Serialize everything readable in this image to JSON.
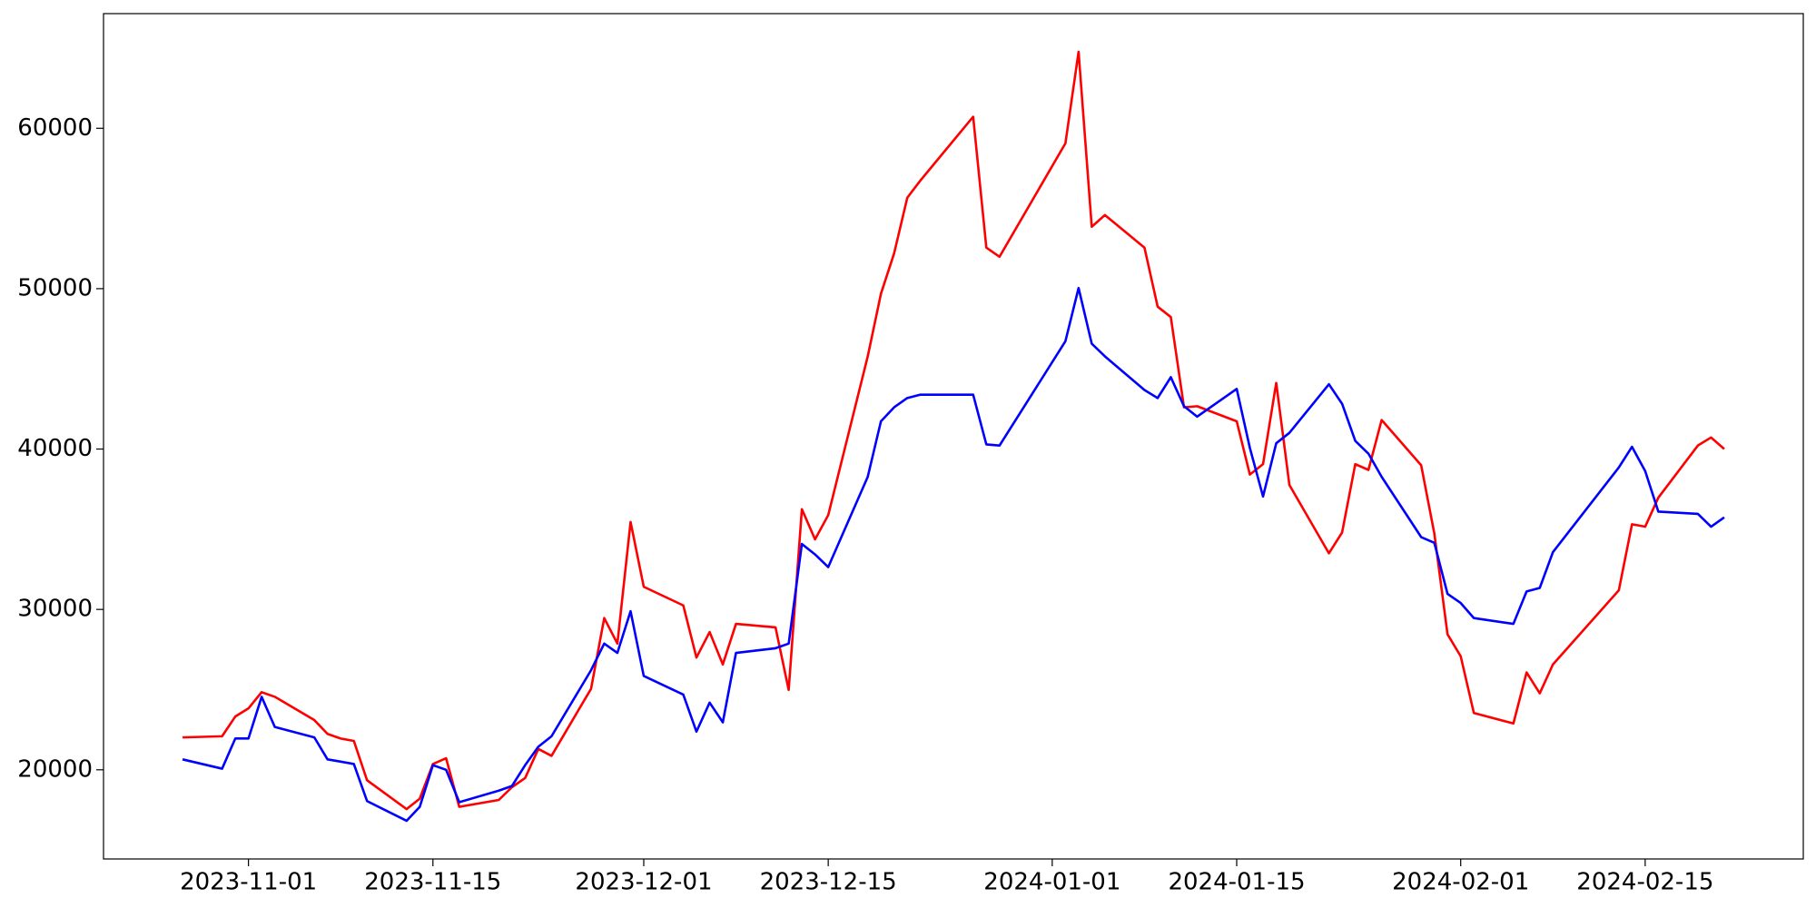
{
  "chart_data": {
    "type": "line",
    "x": [
      "2023-10-27",
      "2023-10-30",
      "2023-10-31",
      "2023-11-01",
      "2023-11-02",
      "2023-11-03",
      "2023-11-06",
      "2023-11-07",
      "2023-11-08",
      "2023-11-09",
      "2023-11-10",
      "2023-11-13",
      "2023-11-14",
      "2023-11-15",
      "2023-11-16",
      "2023-11-17",
      "2023-11-20",
      "2023-11-21",
      "2023-11-22",
      "2023-11-23",
      "2023-11-24",
      "2023-11-27",
      "2023-11-28",
      "2023-11-29",
      "2023-11-30",
      "2023-12-01",
      "2023-12-04",
      "2023-12-05",
      "2023-12-06",
      "2023-12-07",
      "2023-12-08",
      "2023-12-11",
      "2023-12-12",
      "2023-12-13",
      "2023-12-14",
      "2023-12-15",
      "2023-12-18",
      "2023-12-19",
      "2023-12-20",
      "2023-12-21",
      "2023-12-22",
      "2023-12-26",
      "2023-12-27",
      "2023-12-28",
      "2024-01-02",
      "2024-01-03",
      "2024-01-04",
      "2024-01-05",
      "2024-01-08",
      "2024-01-09",
      "2024-01-10",
      "2024-01-11",
      "2024-01-12",
      "2024-01-15",
      "2024-01-16",
      "2024-01-17",
      "2024-01-18",
      "2024-01-19",
      "2024-01-22",
      "2024-01-23",
      "2024-01-24",
      "2024-01-25",
      "2024-01-26",
      "2024-01-29",
      "2024-01-30",
      "2024-01-31",
      "2024-02-01",
      "2024-02-02",
      "2024-02-05",
      "2024-02-06",
      "2024-02-07",
      "2024-02-08",
      "2024-02-13",
      "2024-02-14",
      "2024-02-15",
      "2024-02-16",
      "2024-02-19",
      "2024-02-20",
      "2024-02-21"
    ],
    "series": [
      {
        "color": "#ff0000",
        "values": [
          22020,
          22090,
          23320,
          23830,
          24840,
          24550,
          23100,
          22240,
          21950,
          21800,
          19350,
          17550,
          18200,
          20360,
          20720,
          17690,
          18120,
          18920,
          19490,
          21300,
          20870,
          25050,
          29460,
          27870,
          35450,
          31410,
          30250,
          27000,
          28590,
          26570,
          29100,
          28880,
          24980,
          36250,
          34370,
          35880,
          45780,
          49680,
          52200,
          55670,
          56750,
          60720,
          52560,
          51990,
          59060,
          64770,
          53860,
          54590,
          52560,
          48880,
          48230,
          42600,
          42670,
          41730,
          38410,
          39060,
          44120,
          37760,
          33500,
          34800,
          39060,
          38700,
          41810,
          38990,
          34730,
          28450,
          27080,
          23540,
          22890,
          26070,
          24770,
          26570,
          31190,
          35310,
          35160,
          36970,
          40220,
          40720,
          40000
        ]
      },
      {
        "color": "#0000ff",
        "values": [
          20650,
          20070,
          21950,
          21950,
          24550,
          22670,
          22020,
          20650,
          20510,
          20360,
          18050,
          16820,
          17690,
          20290,
          20000,
          17980,
          18700,
          18990,
          20290,
          21440,
          22090,
          26210,
          27870,
          27290,
          29890,
          25850,
          24690,
          22380,
          24190,
          22960,
          27290,
          27580,
          27870,
          34080,
          33430,
          32640,
          38270,
          41730,
          42600,
          43180,
          43390,
          43390,
          40290,
          40220,
          46720,
          50040,
          46570,
          45780,
          43680,
          43180,
          44480,
          42670,
          42020,
          43750,
          40070,
          37040,
          40360,
          41010,
          44040,
          42820,
          40510,
          39710,
          38270,
          34510,
          34150,
          30970,
          30400,
          29460,
          29100,
          31120,
          31340,
          33570,
          38850,
          40140,
          38630,
          36100,
          35960,
          35160,
          35740
        ]
      }
    ],
    "xlim": [
      "2023-10-21",
      "2024-02-27"
    ],
    "xticks": [
      "2023-11-01",
      "2023-11-15",
      "2023-12-01",
      "2023-12-15",
      "2024-01-01",
      "2024-01-15",
      "2024-02-01",
      "2024-02-15"
    ],
    "ylim": [
      14440,
      67150
    ],
    "yticks": [
      20000,
      30000,
      40000,
      50000,
      60000
    ]
  }
}
